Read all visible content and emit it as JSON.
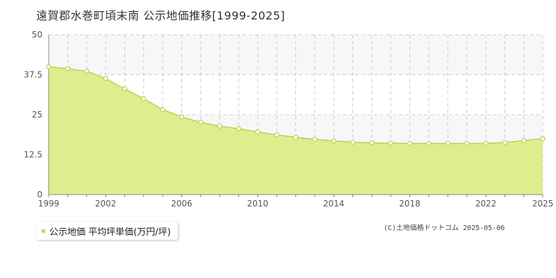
{
  "chart_data": {
    "type": "area",
    "title": "遠賀郡水巻町頃末南 公示地価推移[1999-2025]",
    "xlabel": "",
    "ylabel": "",
    "xlim": [
      1999,
      2025
    ],
    "ylim": [
      0,
      50
    ],
    "x_ticks": [
      1999,
      2002,
      2006,
      2010,
      2014,
      2018,
      2022,
      2025
    ],
    "y_ticks": [
      0,
      12.5,
      25,
      37.5,
      50
    ],
    "y_tick_labels": [
      "0",
      "12.5",
      "25",
      "37.5",
      "50"
    ],
    "grid": true,
    "legend_position": "bottom-left",
    "series": [
      {
        "name": "公示地価 平均坪単価(万円/坪)",
        "x": [
          1999,
          2000,
          2001,
          2002,
          2003,
          2004,
          2005,
          2006,
          2007,
          2008,
          2009,
          2010,
          2011,
          2012,
          2013,
          2014,
          2015,
          2016,
          2017,
          2018,
          2019,
          2020,
          2021,
          2022,
          2023,
          2024,
          2025
        ],
        "values": [
          40.0,
          39.4,
          38.6,
          36.3,
          33.1,
          30.0,
          26.6,
          24.3,
          22.6,
          21.4,
          20.6,
          19.6,
          18.7,
          17.9,
          17.3,
          16.8,
          16.4,
          16.2,
          16.1,
          16.0,
          16.0,
          16.0,
          16.0,
          16.0,
          16.3,
          16.9,
          17.5
        ]
      }
    ],
    "colors": {
      "fill": "#dcee8e",
      "line": "#b4d453",
      "marker_fill": "#ffffff",
      "marker_stroke": "#b4d453",
      "band": "#f7f7f9",
      "grid": "#cccccc",
      "axis": "#888888",
      "legend_marker": "#b6d957"
    }
  },
  "legend": {
    "label": "公示地価 平均坪単価(万円/坪)"
  },
  "copyright": "(C)土地価格ドットコム 2025-05-06"
}
